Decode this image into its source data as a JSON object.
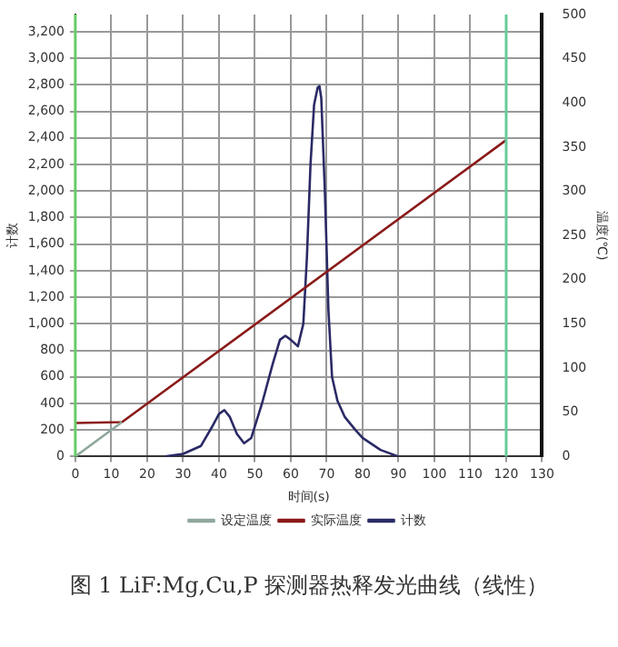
{
  "chart_data": {
    "type": "line",
    "xlabel": "时间(s)",
    "ylabel": "计数",
    "y2label": "温度(℃)",
    "xlim": [
      0,
      130
    ],
    "xticks": [
      0,
      10,
      20,
      30,
      40,
      50,
      60,
      70,
      80,
      90,
      100,
      110,
      120,
      130
    ],
    "ylim": [
      0,
      3330
    ],
    "yticks": [
      0,
      200,
      400,
      600,
      800,
      {
        "value": 1000,
        "label": "1,000"
      },
      {
        "value": 1200,
        "label": "1,200"
      },
      {
        "value": 1400,
        "label": "1,400"
      },
      {
        "value": 1600,
        "label": "1,600"
      },
      {
        "value": 1800,
        "label": "1,800"
      },
      {
        "value": 2000,
        "label": "2,000"
      },
      {
        "value": 2200,
        "label": "2,200"
      },
      {
        "value": 2400,
        "label": "2,400"
      },
      {
        "value": 2600,
        "label": "2,600"
      },
      {
        "value": 2800,
        "label": "2,800"
      },
      {
        "value": 3000,
        "label": "3,000"
      },
      {
        "value": 3200,
        "label": "3,200"
      }
    ],
    "y2lim": [
      0,
      500
    ],
    "y2ticks": [
      0,
      50,
      100,
      150,
      200,
      250,
      300,
      350,
      400,
      450,
      500
    ],
    "grid": true,
    "legend": "bottom",
    "marker": "none",
    "line_style": "solid",
    "ref_lines": [
      {
        "axis": "x",
        "value": 0,
        "color": "#66cc66"
      },
      {
        "axis": "x",
        "value": 120,
        "color": "#66cc99"
      }
    ],
    "series": [
      {
        "name": "设定温度",
        "color": "#8fa89c",
        "axis": "y2",
        "x": [
          0,
          13
        ],
        "values": [
          0,
          39
        ]
      },
      {
        "name": "实际温度",
        "color": "#8b1a1a",
        "axis": "y2",
        "x": [
          0,
          13,
          120
        ],
        "values": [
          38,
          39,
          358
        ]
      },
      {
        "name": "计数",
        "color": "#2a2a66",
        "axis": "y",
        "x": [
          25,
          30,
          35,
          38,
          40,
          41.5,
          43,
          45,
          47,
          49,
          52,
          55,
          57,
          58.5,
          60,
          62,
          63.5,
          64.5,
          65.5,
          66.5,
          67.5,
          68,
          68.5,
          69.5,
          70.5,
          71.5,
          73,
          75,
          78,
          80,
          85,
          90
        ],
        "values": [
          0,
          20,
          80,
          220,
          320,
          350,
          300,
          170,
          100,
          140,
          400,
          700,
          880,
          910,
          880,
          830,
          1000,
          1500,
          2200,
          2650,
          2780,
          2790,
          2700,
          2000,
          1100,
          600,
          420,
          300,
          200,
          140,
          50,
          0
        ]
      }
    ],
    "annotations": [
      "图 1 LiF:Mg,Cu,P 探测器热释发光曲线（线性）"
    ]
  }
}
